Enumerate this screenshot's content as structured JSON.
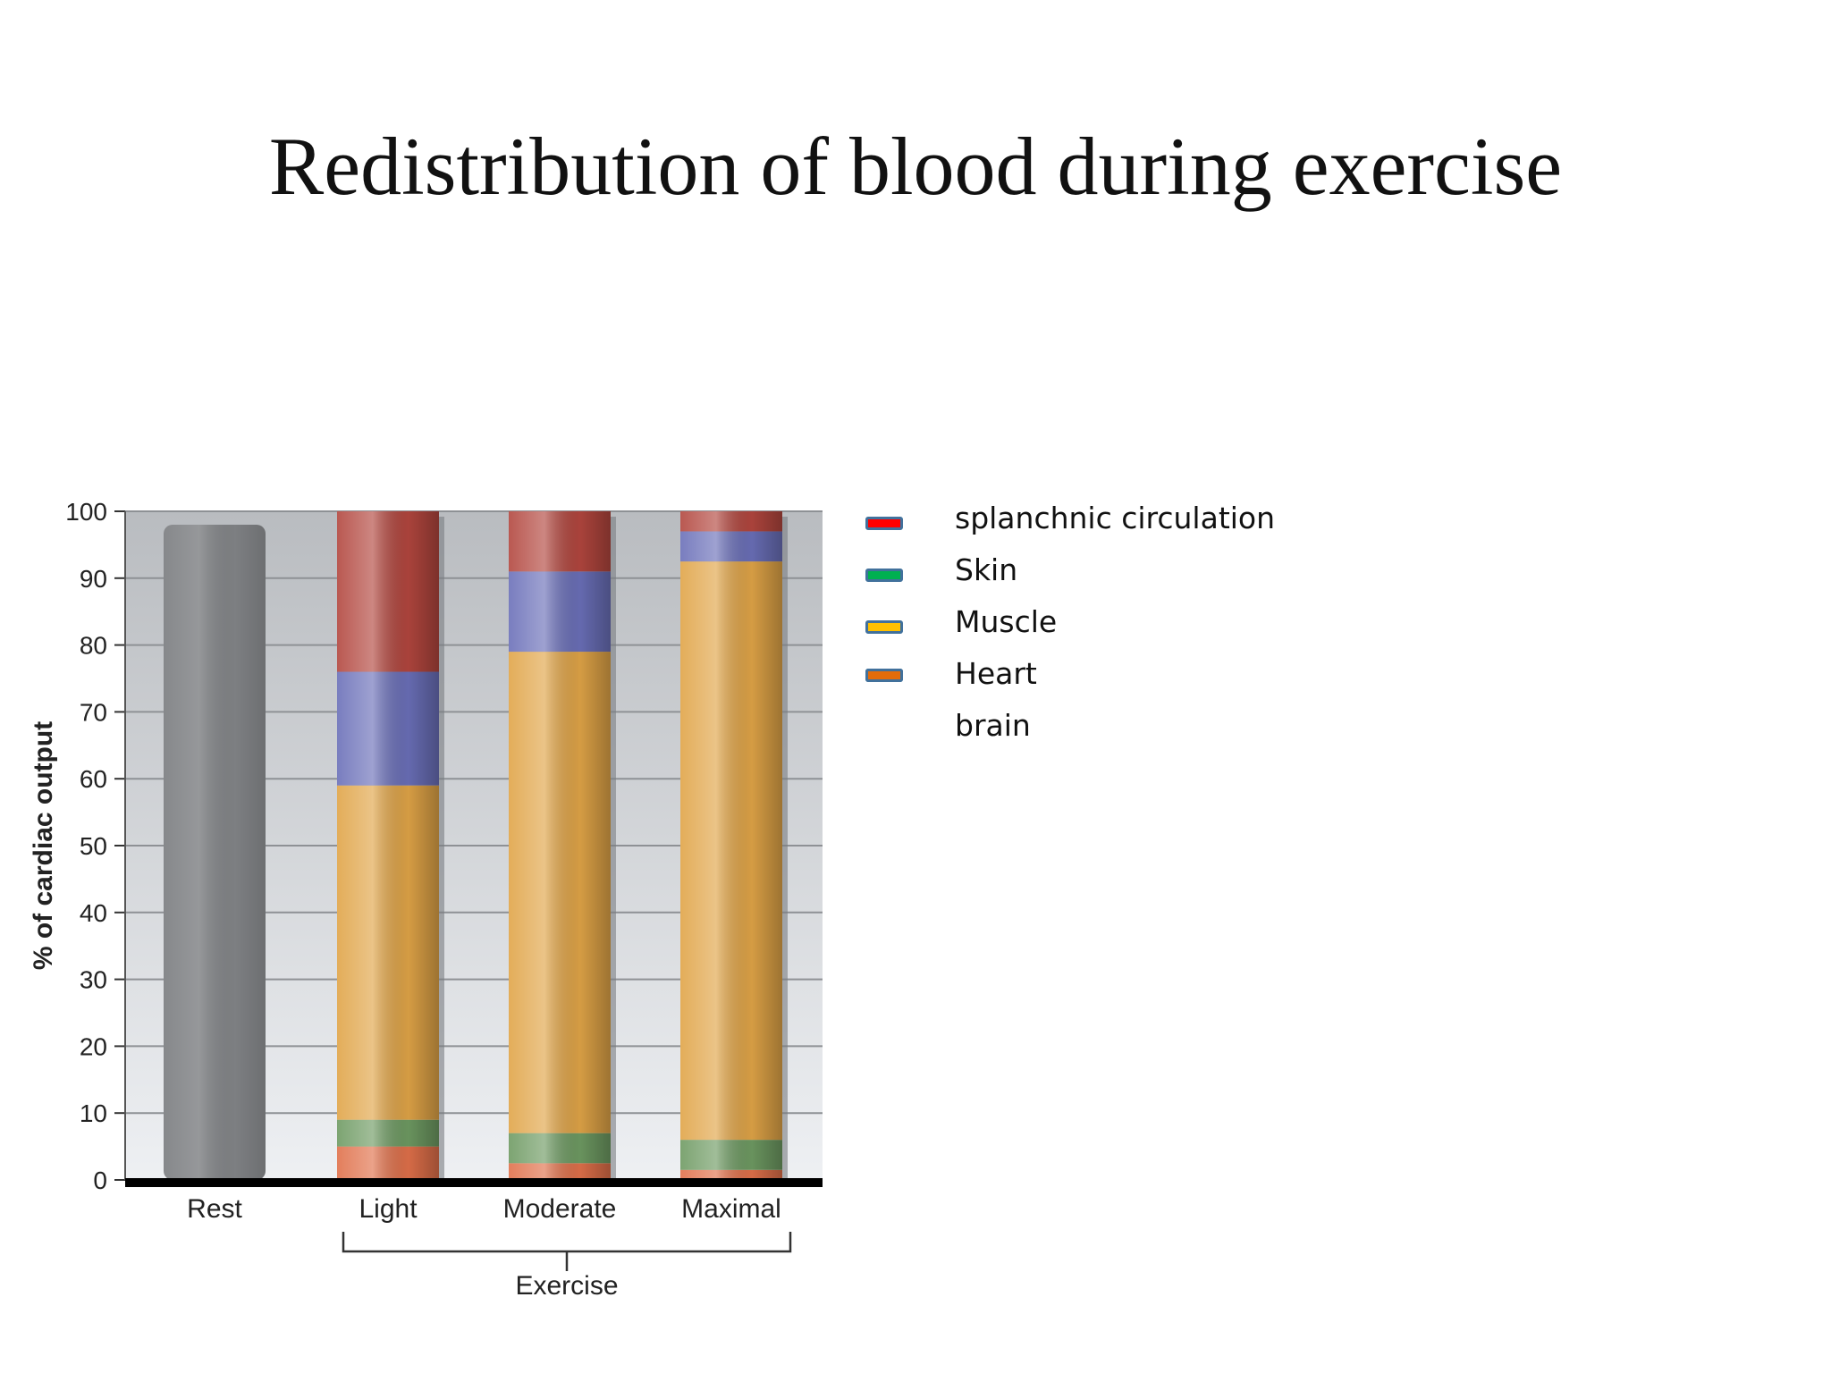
{
  "slide": {
    "title": "Redistribution of blood during exercise"
  },
  "legend": [
    {
      "label": "splanchnic circulation",
      "color": "#ff0000"
    },
    {
      "label": "Skin",
      "color": "#00b050"
    },
    {
      "label": "Muscle",
      "color": "#ffc000"
    },
    {
      "label": "Heart",
      "color": "#0070c0"
    },
    {
      "label": "brain",
      "color": "#e46c0a"
    }
  ],
  "chart_data": {
    "type": "bar",
    "stacked": true,
    "categories": [
      "Rest",
      "Light",
      "Moderate",
      "Maximal"
    ],
    "group_label": "Exercise",
    "group_categories": [
      "Light",
      "Moderate",
      "Maximal"
    ],
    "ylabel": "% of cardiac output",
    "xlabel": "",
    "ylim": [
      0,
      100
    ],
    "yticks": [
      0,
      10,
      20,
      30,
      40,
      50,
      60,
      70,
      80,
      90,
      100
    ],
    "grid": true,
    "total": {
      "name": "",
      "values": [
        98,
        null,
        null,
        null
      ],
      "color": "#808285"
    },
    "series": [
      {
        "name": "brain",
        "values": [
          null,
          5,
          2.5,
          1.5
        ],
        "color": "#e0704a"
      },
      {
        "name": "Skin",
        "values": [
          null,
          4,
          4.5,
          4.5
        ],
        "color": "#6e9a62"
      },
      {
        "name": "Muscle",
        "values": [
          null,
          50,
          72,
          86.5
        ],
        "color": "#e0a447"
      },
      {
        "name": "Heart",
        "values": [
          null,
          17,
          12,
          4.5
        ],
        "color": "#6a6fb8"
      },
      {
        "name": "splanchnic circulation",
        "values": [
          null,
          24,
          9,
          3
        ],
        "color": "#b2463e"
      }
    ]
  }
}
